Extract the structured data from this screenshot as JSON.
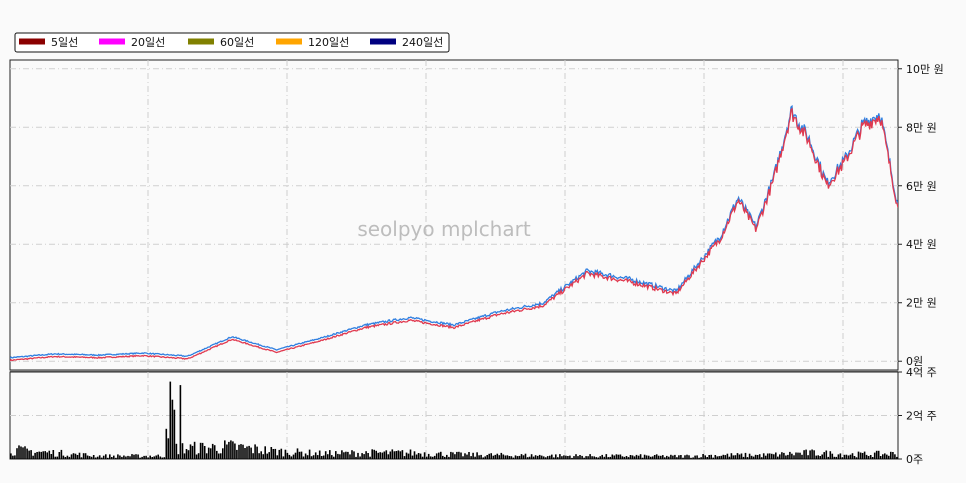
{
  "watermark": "seolpyo mplchart",
  "legend": [
    {
      "label": "5일선",
      "color": "#8b0000"
    },
    {
      "label": "20일선",
      "color": "#ff00ff"
    },
    {
      "label": "60일선",
      "color": "#808000"
    },
    {
      "label": "120일선",
      "color": "#ffa500"
    },
    {
      "label": "240일선",
      "color": "#000080"
    }
  ],
  "price_axis": {
    "ticks": [
      {
        "value": 0,
        "label": "0원"
      },
      {
        "value": 20000,
        "label": "2만 원"
      },
      {
        "value": 40000,
        "label": "4만 원"
      },
      {
        "value": 60000,
        "label": "6만 원"
      },
      {
        "value": 80000,
        "label": "8만 원"
      },
      {
        "value": 100000,
        "label": "10만 원"
      }
    ]
  },
  "volume_axis": {
    "ticks": [
      {
        "value": 0,
        "label": "0주"
      },
      {
        "value": 200000000,
        "label": "2억 주"
      },
      {
        "value": 400000000,
        "label": "4억 주"
      }
    ]
  },
  "chart_data": [
    {
      "type": "line",
      "panel": "price",
      "x": [
        0,
        5,
        10,
        15,
        20,
        25,
        30,
        35,
        40,
        45,
        50,
        55,
        60,
        65,
        70,
        75,
        80,
        82,
        84,
        86,
        88,
        90,
        92,
        94,
        96,
        98,
        100
      ],
      "ylim": [
        -3000,
        103000
      ],
      "grid": true,
      "series": [
        {
          "values": [
            300,
            1600,
            1200,
            1900,
            800,
            7500,
            3000,
            7000,
            11500,
            14000,
            11500,
            16000,
            19000,
            30000,
            27000,
            23000,
            42000,
            55000,
            45000,
            62000,
            85000,
            75000,
            60000,
            68000,
            80000,
            84000,
            52000
          ]
        }
      ]
    },
    {
      "type": "bar",
      "panel": "volume",
      "x": [
        0,
        5,
        10,
        15,
        18,
        20,
        25,
        30,
        35,
        40,
        45,
        50,
        55,
        60,
        65,
        70,
        75,
        80,
        85,
        90,
        95,
        100
      ],
      "ylim": [
        0,
        400000000
      ],
      "grid": true,
      "series": [
        {
          "values": [
            60000000,
            40000000,
            20000000,
            20000000,
            340000000,
            70000000,
            80000000,
            50000000,
            35000000,
            40000000,
            40000000,
            30000000,
            25000000,
            22000000,
            20000000,
            20000000,
            18000000,
            25000000,
            25000000,
            40000000,
            30000000,
            35000000
          ]
        }
      ]
    }
  ]
}
